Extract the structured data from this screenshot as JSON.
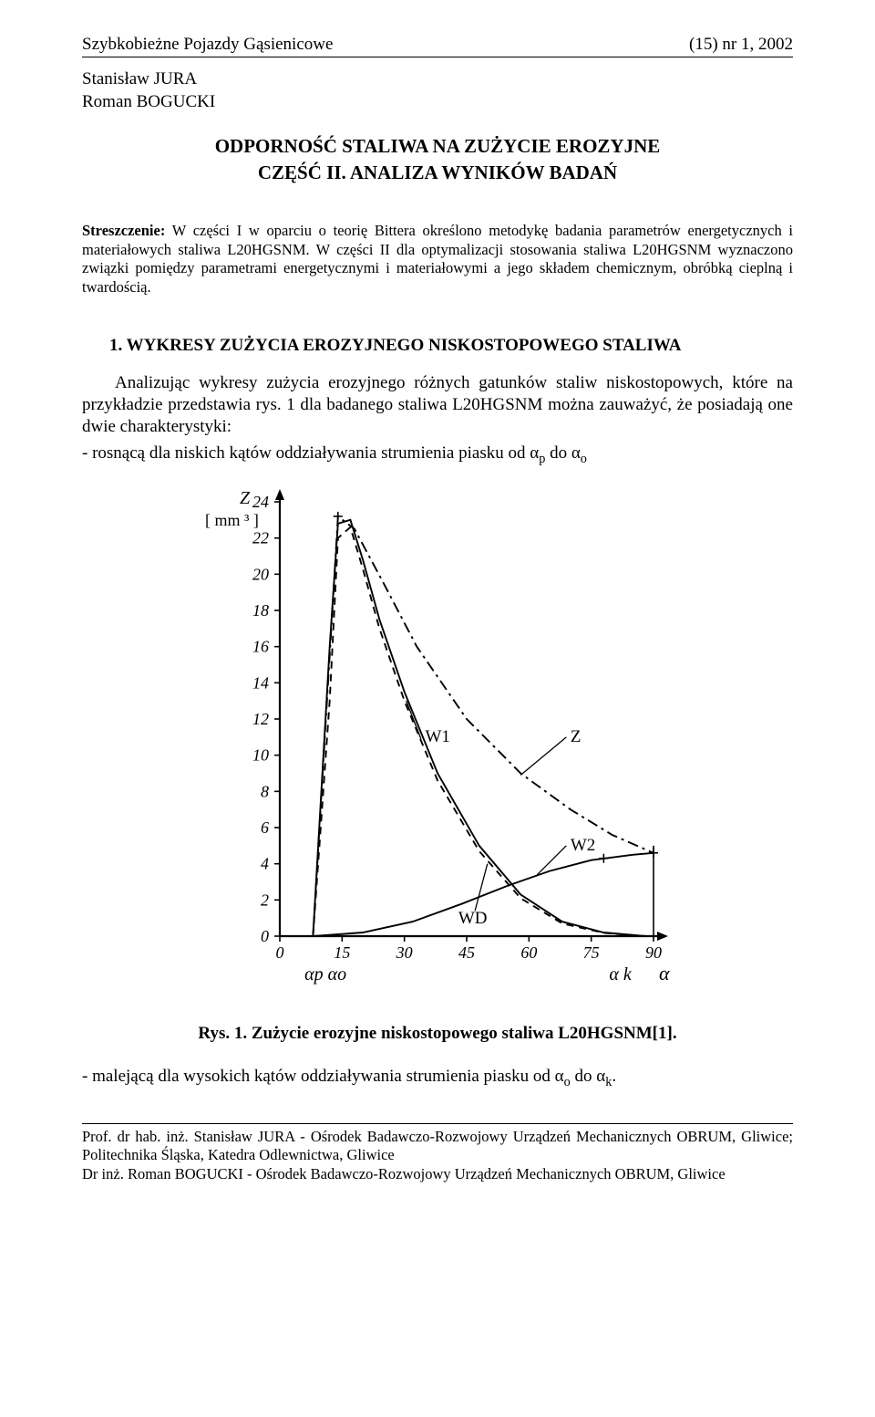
{
  "header": {
    "journal": "Szybkobieżne Pojazdy Gąsienicowe",
    "issue": "(15) nr 1, 2002"
  },
  "authors": {
    "line1": "Stanisław JURA",
    "line2": "Roman BOGUCKI"
  },
  "title": {
    "line1": "ODPORNOŚĆ STALIWA NA ZUŻYCIE EROZYJNE",
    "line2": "CZĘŚĆ II.  ANALIZA WYNIKÓW BADAŃ"
  },
  "abstract": {
    "label": "Streszczenie:",
    "text": " W części I w oparciu o teorię Bittera określono metodykę badania parametrów energetycznych i materiałowych staliwa L20HGSNM. W części II dla optymalizacji stosowania staliwa L20HGSNM wyznaczono związki pomiędzy parametrami energetycznymi i materiałowymi a jego składem chemicznym, obróbką cieplną i twardością."
  },
  "section1": {
    "heading": "1. WYKRESY ZUŻYCIA EROZYJNEGO NISKOSTOPOWEGO STALIWA",
    "para1": "Analizując wykresy zużycia erozyjnego różnych gatunków staliw niskostopowych, które na przykładzie przedstawia rys. 1 dla badanego staliwa L20HGSNM można zauważyć, że posiadają one dwie charakterystyki:",
    "bullet1_pre": "- rosnącą dla niskich kątów oddziaływania strumienia piasku od α",
    "bullet1_sub1": "p",
    "bullet1_mid": " do α",
    "bullet1_sub2": "o",
    "bullet2_pre": "- malejącą dla wysokich kątów oddziaływania strumienia piasku od α",
    "bullet2_sub1": "o",
    "bullet2_mid": " do α",
    "bullet2_sub2": "k",
    "bullet2_end": "."
  },
  "figure1": {
    "caption": "Rys. 1. Zużycie erozyjne niskostopowego staliwa L20HGSNM[1].",
    "y_label_top": "Z",
    "y_unit": "[ mm ³ ]",
    "y_ticks": [
      24,
      22,
      20,
      18,
      16,
      14,
      12,
      10,
      8,
      6,
      4,
      2,
      0
    ],
    "x_ticks": [
      0,
      15,
      30,
      45,
      60,
      75,
      90
    ],
    "x_axis_labels_left": "αp αo",
    "x_axis_label_right_k": "α k",
    "x_axis_label_right": "α",
    "curve_labels": {
      "W1": "W1",
      "W2": "W2",
      "WD": "WD",
      "Z": "Z"
    },
    "stroke_color": "#000000",
    "background_color": "#ffffff",
    "axis_stroke_width": 2.2,
    "curve_stroke_width": 1.9,
    "font_family": "Times New Roman",
    "y_range": [
      0,
      24
    ],
    "x_range": [
      0,
      90
    ],
    "curves": {
      "Z": {
        "style": "dash-dot",
        "points": [
          [
            8,
            0
          ],
          [
            14,
            23.2
          ],
          [
            18,
            22.5
          ],
          [
            25,
            19.5
          ],
          [
            33,
            16
          ],
          [
            45,
            12
          ],
          [
            58,
            9
          ],
          [
            70,
            7
          ],
          [
            80,
            5.6
          ],
          [
            90,
            4.6
          ]
        ]
      },
      "W1": {
        "style": "solid",
        "points": [
          [
            8,
            0
          ],
          [
            12,
            16
          ],
          [
            14,
            22.8
          ],
          [
            17,
            23.0
          ],
          [
            20,
            20.8
          ],
          [
            24,
            17.5
          ],
          [
            30,
            13.5
          ],
          [
            38,
            9
          ],
          [
            48,
            5
          ],
          [
            58,
            2.3
          ],
          [
            68,
            0.8
          ],
          [
            78,
            0.2
          ],
          [
            88,
            0
          ]
        ]
      },
      "W2": {
        "style": "solid",
        "points": [
          [
            8,
            0
          ],
          [
            20,
            0.2
          ],
          [
            32,
            0.8
          ],
          [
            44,
            1.8
          ],
          [
            55,
            2.8
          ],
          [
            65,
            3.6
          ],
          [
            75,
            4.2
          ],
          [
            85,
            4.5
          ],
          [
            90,
            4.6
          ]
        ]
      },
      "WD": {
        "style": "dashed",
        "points": [
          [
            8,
            0
          ],
          [
            12,
            13
          ],
          [
            14,
            22
          ],
          [
            17,
            22.6
          ],
          [
            20,
            20.3
          ],
          [
            24,
            17
          ],
          [
            30,
            13
          ],
          [
            38,
            8.6
          ],
          [
            48,
            4.7
          ],
          [
            58,
            2.1
          ],
          [
            68,
            0.7
          ],
          [
            78,
            0.18
          ],
          [
            88,
            0
          ]
        ]
      }
    },
    "markers": [
      {
        "x": 14,
        "y": 23.2
      },
      {
        "x": 90,
        "y": 4.6
      },
      {
        "x": 78,
        "y": 4.3
      }
    ]
  },
  "footnote": {
    "line1": "Prof. dr hab. inż. Stanisław JURA - Ośrodek Badawczo-Rozwojowy Urządzeń Mechanicznych OBRUM, Gliwice; Politechnika Śląska, Katedra Odlewnictwa, Gliwice",
    "line2": "Dr inż. Roman BOGUCKI - Ośrodek Badawczo-Rozwojowy Urządzeń Mechanicznych OBRUM, Gliwice"
  }
}
